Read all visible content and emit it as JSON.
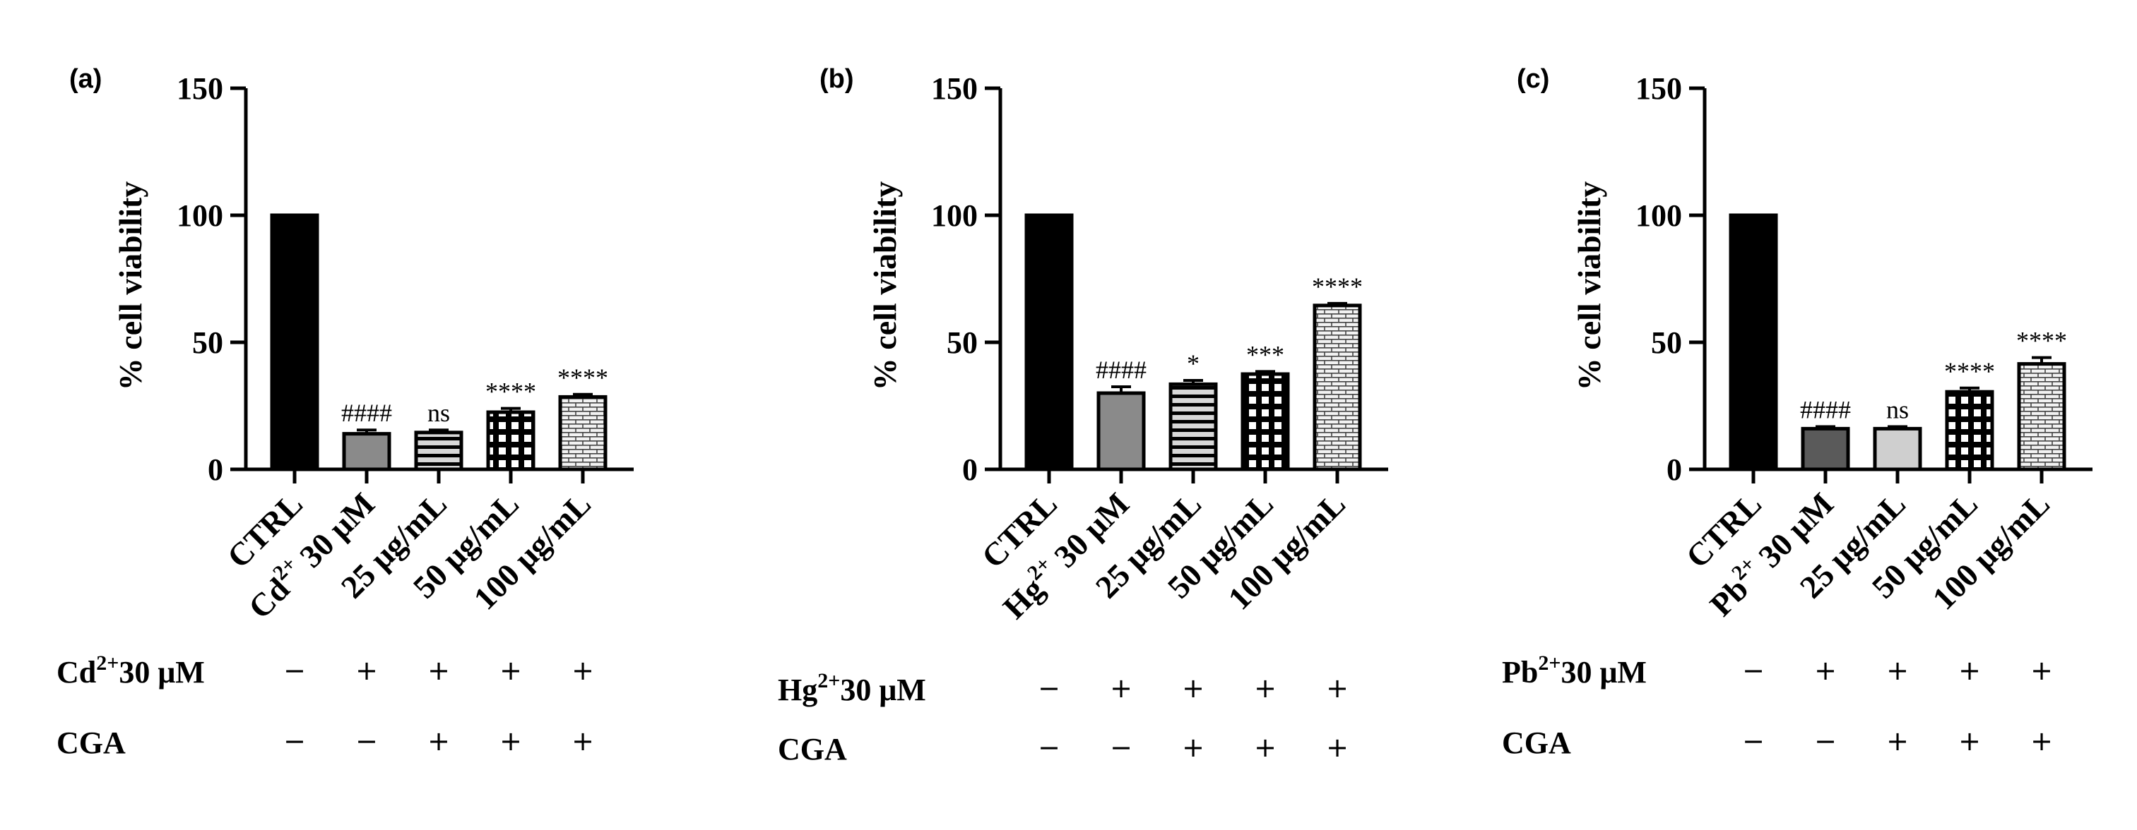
{
  "chart_data": [
    {
      "type": "bar",
      "panel_label": "(a)",
      "ylabel": "% cell viability",
      "ylim": [
        0,
        150
      ],
      "yticks": [
        "0",
        "50",
        "100",
        "150"
      ],
      "categories": [
        {
          "main": "CTRL",
          "sup": "",
          "tail": ""
        },
        {
          "main": "Cd",
          "sup": "2+",
          "tail": " 30 μM"
        },
        {
          "main": "25 μg/mL",
          "sup": "",
          "tail": ""
        },
        {
          "main": "50 μg/mL",
          "sup": "",
          "tail": ""
        },
        {
          "main": "100 μg/mL",
          "sup": "",
          "tail": ""
        }
      ],
      "values": [
        100,
        14,
        14.5,
        22.5,
        28.5
      ],
      "errors": [
        0,
        1.5,
        1.0,
        1.5,
        1.0
      ],
      "patterns": [
        "black",
        "gray",
        "hlines",
        "grid",
        "brick"
      ],
      "significance": [
        "",
        "####",
        "ns",
        "****",
        "****"
      ],
      "treatment_rows": [
        {
          "main": "Cd",
          "sup": "2+",
          "tail": "30 μM",
          "signs": [
            "−",
            "+",
            "+",
            "+",
            "+"
          ]
        },
        {
          "main": "CGA",
          "sup": "",
          "tail": "",
          "signs": [
            "−",
            "−",
            "+",
            "+",
            "+"
          ]
        }
      ]
    },
    {
      "type": "bar",
      "panel_label": "(b)",
      "ylabel": "% cell viability",
      "ylim": [
        0,
        150
      ],
      "yticks": [
        "0",
        "50",
        "100",
        "150"
      ],
      "categories": [
        {
          "main": "CTRL",
          "sup": "",
          "tail": ""
        },
        {
          "main": "Hg",
          "sup": "2+",
          "tail": " 30 μM"
        },
        {
          "main": "25 μg/mL",
          "sup": "",
          "tail": ""
        },
        {
          "main": "50 μg/mL",
          "sup": "",
          "tail": ""
        },
        {
          "main": "100 μg/mL",
          "sup": "",
          "tail": ""
        }
      ],
      "values": [
        100,
        30,
        33.5,
        37.5,
        64.5
      ],
      "errors": [
        0,
        2.5,
        1.5,
        1.0,
        0.8
      ],
      "patterns": [
        "black",
        "gray",
        "hlines",
        "grid",
        "brick"
      ],
      "significance": [
        "",
        "####",
        "*",
        "***",
        "****"
      ],
      "treatment_rows": [
        {
          "main": "Hg",
          "sup": "2+",
          "tail": "30 μM",
          "signs": [
            "−",
            "+",
            "+",
            "+",
            "+"
          ]
        },
        {
          "main": "CGA",
          "sup": "",
          "tail": "",
          "signs": [
            "−",
            "−",
            "+",
            "+",
            "+"
          ]
        }
      ]
    },
    {
      "type": "bar",
      "panel_label": "(c)",
      "ylabel": "% cell viability",
      "ylim": [
        0,
        150
      ],
      "yticks": [
        "0",
        "50",
        "100",
        "150"
      ],
      "categories": [
        {
          "main": "CTRL",
          "sup": "",
          "tail": ""
        },
        {
          "main": "Pb",
          "sup": "2+",
          "tail": " 30 μM"
        },
        {
          "main": "25 μg/mL",
          "sup": "",
          "tail": ""
        },
        {
          "main": "50 μg/mL",
          "sup": "",
          "tail": ""
        },
        {
          "main": "100 μg/mL",
          "sup": "",
          "tail": ""
        }
      ],
      "values": [
        100,
        16,
        16,
        30.5,
        41.5
      ],
      "errors": [
        0,
        0.8,
        0.8,
        1.5,
        2.5
      ],
      "patterns": [
        "black",
        "darkgray",
        "lightgray",
        "grid",
        "brick"
      ],
      "significance": [
        "",
        "####",
        "ns",
        "****",
        "****"
      ],
      "treatment_rows": [
        {
          "main": "Pb",
          "sup": "2+",
          "tail": "30 μM",
          "signs": [
            "−",
            "+",
            "+",
            "+",
            "+"
          ]
        },
        {
          "main": "CGA",
          "sup": "",
          "tail": "",
          "signs": [
            "−",
            "−",
            "+",
            "+",
            "+"
          ]
        }
      ]
    }
  ]
}
